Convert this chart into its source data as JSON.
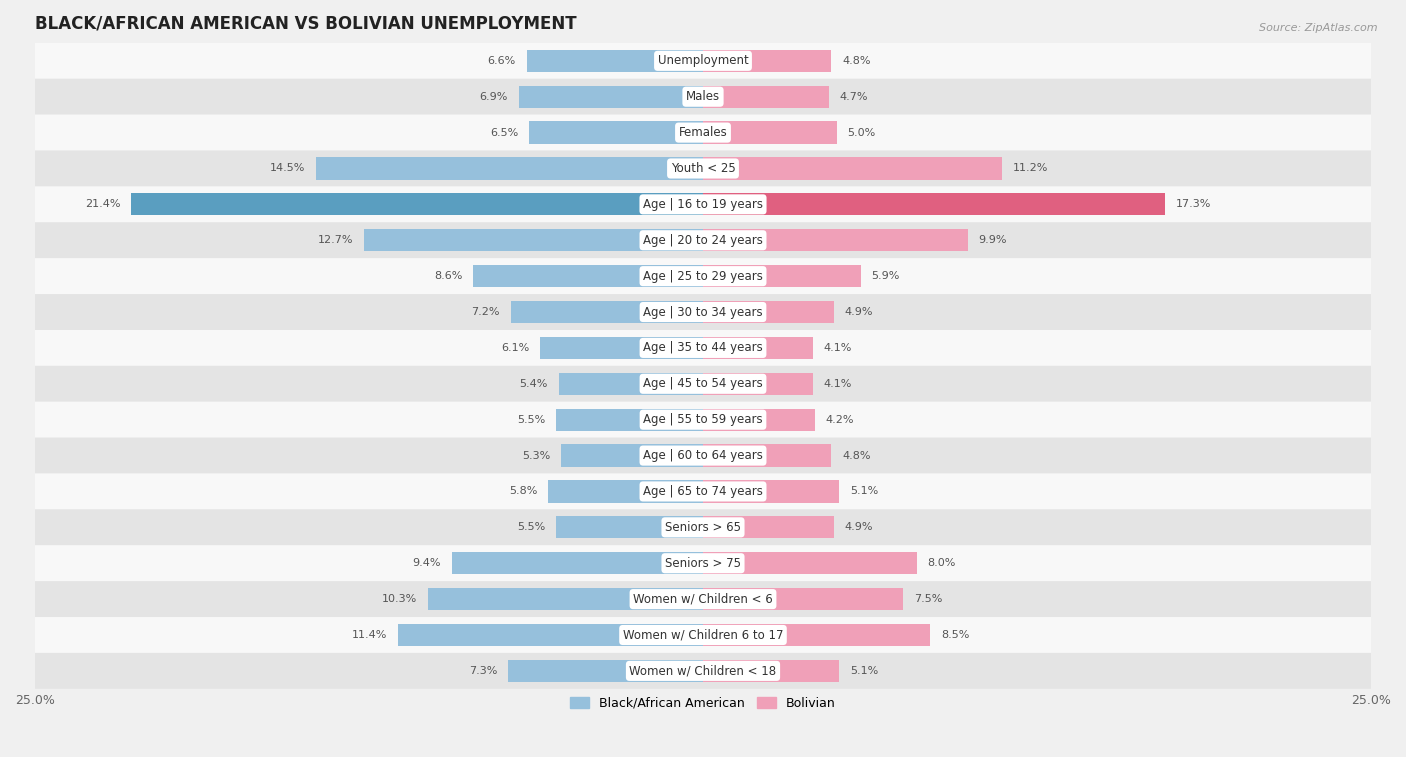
{
  "title": "BLACK/AFRICAN AMERICAN VS BOLIVIAN UNEMPLOYMENT",
  "source": "Source: ZipAtlas.com",
  "categories": [
    "Unemployment",
    "Males",
    "Females",
    "Youth < 25",
    "Age | 16 to 19 years",
    "Age | 20 to 24 years",
    "Age | 25 to 29 years",
    "Age | 30 to 34 years",
    "Age | 35 to 44 years",
    "Age | 45 to 54 years",
    "Age | 55 to 59 years",
    "Age | 60 to 64 years",
    "Age | 65 to 74 years",
    "Seniors > 65",
    "Seniors > 75",
    "Women w/ Children < 6",
    "Women w/ Children 6 to 17",
    "Women w/ Children < 18"
  ],
  "left_values": [
    6.6,
    6.9,
    6.5,
    14.5,
    21.4,
    12.7,
    8.6,
    7.2,
    6.1,
    5.4,
    5.5,
    5.3,
    5.8,
    5.5,
    9.4,
    10.3,
    11.4,
    7.3
  ],
  "right_values": [
    4.8,
    4.7,
    5.0,
    11.2,
    17.3,
    9.9,
    5.9,
    4.9,
    4.1,
    4.1,
    4.2,
    4.8,
    5.1,
    4.9,
    8.0,
    7.5,
    8.5,
    5.1
  ],
  "left_color": "#96c0dc",
  "right_color": "#f0a0b8",
  "left_highlight_color": "#5a9ec0",
  "right_highlight_color": "#e06080",
  "highlight_index": 4,
  "xlim": 25.0,
  "bar_height": 0.62,
  "background_color": "#f0f0f0",
  "row_light": "#f8f8f8",
  "row_dark": "#e4e4e4",
  "legend_left": "Black/African American",
  "legend_right": "Bolivian",
  "title_fontsize": 12,
  "label_fontsize": 8.5,
  "value_fontsize": 8.0
}
